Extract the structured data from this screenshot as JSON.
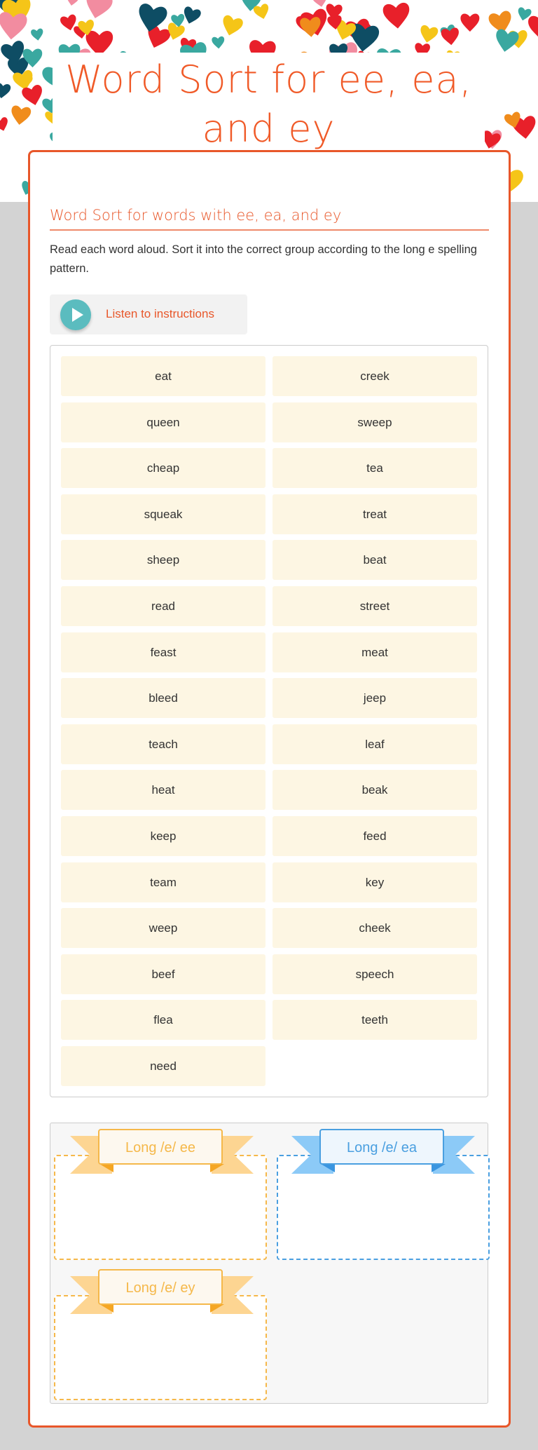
{
  "header": {
    "title": "Word Sort for ee, ea, and ey",
    "heart_colors": [
      "#3aa8a0",
      "#0e4d64",
      "#e8202a",
      "#f5c518",
      "#f08c1c",
      "#f28ca0"
    ]
  },
  "activity": {
    "subtitle": "Word Sort for words with ee, ea, and ey",
    "instructions": "Read each word aloud. Sort it into the correct group according to the long e spelling pattern.",
    "listen_label": "Listen to instructions",
    "words": [
      "eat",
      "creek",
      "queen",
      "sweep",
      "cheap",
      "tea",
      "squeak",
      "treat",
      "sheep",
      "beat",
      "read",
      "street",
      "feast",
      "meat",
      "bleed",
      "jeep",
      "teach",
      "leaf",
      "heat",
      "beak",
      "keep",
      "feed",
      "team",
      "key",
      "weep",
      "cheek",
      "beef",
      "speech",
      "flea",
      "teeth",
      "need"
    ],
    "categories": [
      {
        "label": "Long /e/ ee",
        "color": "#f5b84a"
      },
      {
        "label": "Long /e/ ea",
        "color": "#4a9fe0"
      },
      {
        "label": "Long /e/ ey",
        "color": "#f5b84a"
      }
    ]
  },
  "colors": {
    "accent": "#e8572a",
    "tile": "#fdf6e3",
    "play": "#5bbcbf"
  }
}
